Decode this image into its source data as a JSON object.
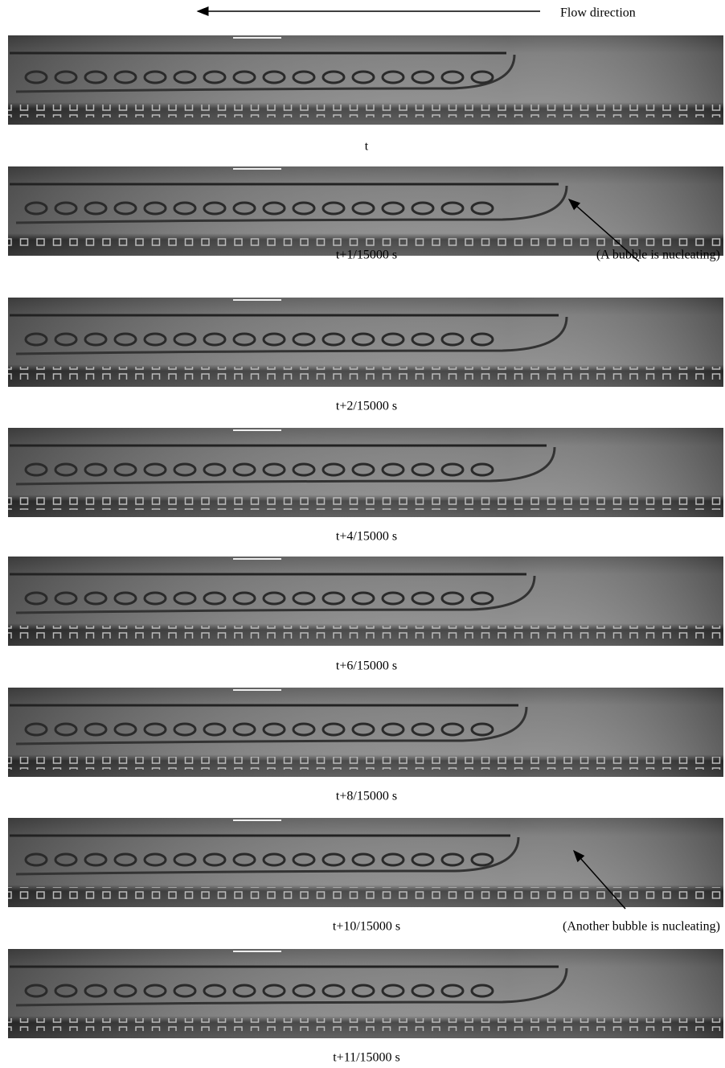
{
  "flow_label": "Flow direction",
  "frames": [
    {
      "caption": "t"
    },
    {
      "caption": "t+1/15000 s",
      "annotation": "(A bubble is nucleating)"
    },
    {
      "caption": "t+2/15000 s"
    },
    {
      "caption": "t+4/15000 s"
    },
    {
      "caption": "t+6/15000 s"
    },
    {
      "caption": "t+8/15000 s"
    },
    {
      "caption": "t+10/15000  s",
      "annotation": "(Another bubble is nucleating)"
    },
    {
      "caption": "t+11/15000 s"
    }
  ]
}
